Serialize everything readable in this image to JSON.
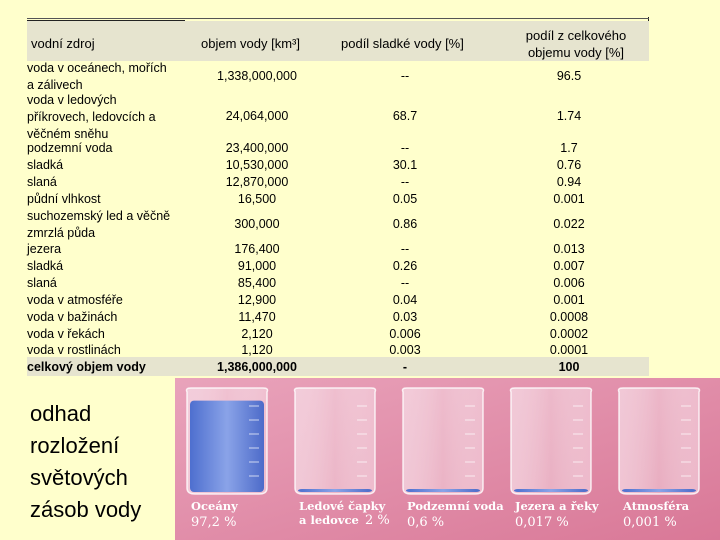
{
  "table": {
    "headers": {
      "source": "vodní zdroj",
      "volume": "objem vody [km³]",
      "fresh_share": "podíl sladké vody [%]",
      "total_share": "podíl z celkového\nobjemu vody [%]"
    },
    "rows": [
      {
        "source": " voda v oceánech, mořích\n a  zálivech",
        "volume": "1,338,000,000",
        "fresh": "--",
        "total": "96.5"
      },
      {
        "source": " voda v ledových\npříkrovech, ledovcích a\nvěčném sněhu",
        "volume": "24,064,000",
        "fresh": "68.7",
        "total": "1.74"
      },
      {
        "source": " podzemní voda\n      sladká\n      slaná\n půdní vlhkost",
        "volume": "23,400,000\n10,530,000\n12,870,000\n16,500",
        "fresh": "--\n30.1\n--\n0.05",
        "total": "1.7\n0.76\n0.94\n0.001"
      },
      {
        "source": " suchozemský led a věčně\nzmrzlá půda",
        "volume": "300,000",
        "fresh": "0.86",
        "total": "0.022"
      },
      {
        "source": " jezera\n     sladká\n     slaná\n voda v atmosféře\n voda v bažinách\n voda v řekách\n voda v rostlinách",
        "volume": "176,400\n91,000\n85,400\n12,900\n11,470\n2,120\n1,120",
        "fresh": "--\n0.26\n--\n0.04\n0.03\n0.006\n0.003",
        "total": "0.013\n0.007\n0.006\n0.001\n0.0008\n0.0002\n0.0001"
      }
    ],
    "total_row": {
      "source": " celkový objem vody",
      "volume": "1,386,000,000",
      "fresh": "-",
      "total": "100"
    }
  },
  "caption": "odhad\nrozložení\nsvětových\nzásob vody",
  "beakers": [
    {
      "label": "Oceány",
      "value": "97,2 %",
      "level": 0.972
    },
    {
      "label": "Ledové čapky",
      "label2": "a ledovce",
      "value": "2 %",
      "level": 0.02
    },
    {
      "label": "Podzemní voda",
      "value": "0,6 %",
      "level": 0.006
    },
    {
      "label": "Jezera a řeky",
      "value": "0,017 %",
      "level": 0.00017
    },
    {
      "label": "Atmosféra",
      "value": "0,001 %",
      "level": 1e-05
    }
  ],
  "colors": {
    "page_background": "#ffffcc",
    "header_background": "#e6e4cf",
    "illustration_background": "#e08aa6",
    "water": "#6b86d6"
  }
}
